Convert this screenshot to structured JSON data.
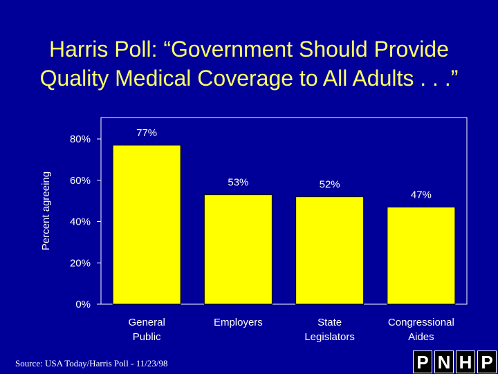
{
  "title_line1": "Harris Poll: “Government Should Provide",
  "title_line2": "Quality Medical Coverage to All Adults . . .”",
  "source": "Source: USA Today/Harris Poll - 11/23/98",
  "logo_letters": [
    "P",
    "N",
    "H",
    "P"
  ],
  "colors": {
    "background": "#000099",
    "bar": "#ffff00",
    "title": "#ffff66"
  },
  "chart_data": {
    "type": "bar",
    "ylabel": "Percent agreeing",
    "xlabel": "",
    "ylim": [
      0,
      80
    ],
    "yticks": [
      0,
      20,
      40,
      60,
      80
    ],
    "ytick_labels": [
      "0%",
      "20%",
      "40%",
      "60%",
      "80%"
    ],
    "categories": [
      [
        "General",
        "Public"
      ],
      [
        "Employers"
      ],
      [
        "State",
        "Legislators"
      ],
      [
        "Congressional",
        "Aides"
      ]
    ],
    "values": [
      77,
      53,
      52,
      47
    ],
    "data_labels": [
      "77%",
      "53%",
      "52%",
      "47%"
    ],
    "grid": false,
    "legend": "none"
  }
}
